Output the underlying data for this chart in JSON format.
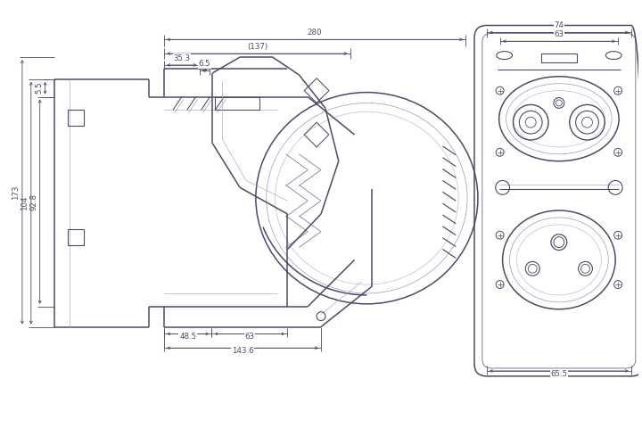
{
  "bg_color": "#ffffff",
  "line_color": "#4a4a6a",
  "dim_color": "#4a4a6a",
  "lw_main": 0.9,
  "lw_thin": 0.5,
  "lw_thick": 1.1,
  "fig_width": 7.2,
  "fig_height": 4.8,
  "dims": {
    "top_280": "280",
    "ref_137": "(137)",
    "d_35_3": "35.3",
    "d_6_5": "6.5",
    "d_5_5": "5.5",
    "d_92_8": "92.8",
    "d_104": "104",
    "d_173": "173",
    "d_48_5": "48.5",
    "d_63": "63",
    "d_143_6": "143.6",
    "r_74": "74",
    "r_63": "63",
    "r_65_5": "65.5"
  }
}
